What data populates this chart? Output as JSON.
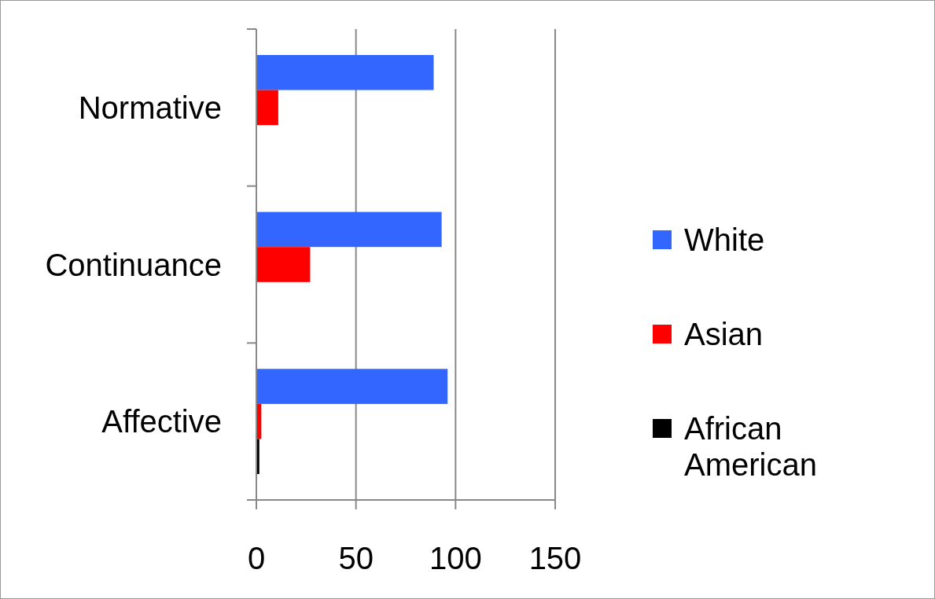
{
  "chart_data": {
    "type": "bar",
    "orientation": "horizontal",
    "categories": [
      "Normative",
      "Continuance",
      "Affective"
    ],
    "series": [
      {
        "name": "White",
        "color": "#3366ff",
        "values": [
          89,
          93,
          96
        ]
      },
      {
        "name": "Asian",
        "color": "#ff0000",
        "values": [
          11,
          27,
          2.5
        ]
      },
      {
        "name": "African American",
        "color": "#000000",
        "values": [
          0,
          0,
          1.5
        ]
      }
    ],
    "xlim": [
      0,
      150
    ],
    "xticks": [
      0,
      50,
      100,
      150
    ],
    "grid": "x",
    "legend": "right"
  }
}
